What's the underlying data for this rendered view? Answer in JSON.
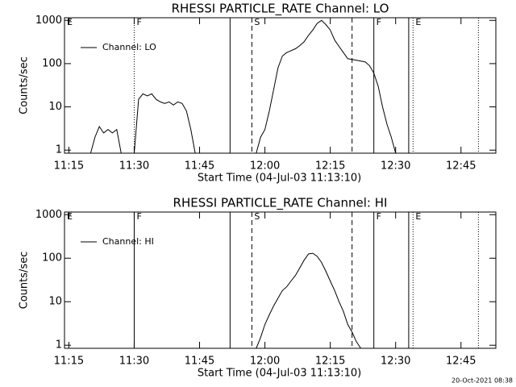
{
  "chart_data": [
    {
      "type": "line",
      "title": "RHESSI PARTICLE_RATE Channel: LO",
      "xlabel": "Start Time (04-Jul-03 11:13:10)",
      "ylabel": "Counts/sec",
      "x": [
        "11:20",
        "11:21",
        "11:22",
        "11:23",
        "11:24",
        "11:25",
        "11:26",
        "11:27",
        "11:28",
        "11:30",
        "11:31",
        "11:32",
        "11:33",
        "11:34",
        "11:35",
        "11:36",
        "11:37",
        "11:38",
        "11:39",
        "11:40",
        "11:41",
        "11:42",
        "11:43",
        "11:44",
        "11:45",
        "11:58",
        "11:59",
        "12:00",
        "12:01",
        "12:02",
        "12:03",
        "12:04",
        "12:05",
        "12:06",
        "12:07",
        "12:08",
        "12:09",
        "12:10",
        "12:11",
        "12:12",
        "12:13",
        "12:14",
        "12:15",
        "12:16",
        "12:17",
        "12:18",
        "12:19",
        "12:20",
        "12:21",
        "12:22",
        "12:23",
        "12:24",
        "12:25",
        "12:26",
        "12:27",
        "12:28",
        "12:29",
        "12:30"
      ],
      "series": [
        {
          "name": "Channel: LO",
          "color": "#000000",
          "values": [
            0.85,
            2,
            3.5,
            2.5,
            3,
            2.5,
            3,
            0.85,
            null,
            0.85,
            15,
            20,
            18,
            20,
            15,
            13,
            12,
            13,
            11,
            13,
            12,
            8,
            3,
            0.85,
            null,
            0.85,
            2,
            3,
            8,
            25,
            80,
            150,
            180,
            200,
            220,
            260,
            320,
            450,
            600,
            850,
            1000,
            800,
            600,
            350,
            250,
            180,
            130,
            125,
            120,
            115,
            110,
            90,
            60,
            30,
            10,
            4,
            2,
            0.85
          ]
        }
      ],
      "xlim": [
        "11:14",
        "12:53"
      ],
      "xticks": [
        "11:15",
        "11:30",
        "11:45",
        "12:00",
        "12:15",
        "12:30",
        "12:45"
      ],
      "ylim": [
        0.85,
        1150
      ],
      "yticks": [
        1,
        10,
        100,
        1000
      ],
      "log_y": true,
      "legend": "upper left",
      "markers": [
        {
          "x": "11:14",
          "style": "none",
          "label": "E"
        },
        {
          "x": "11:30",
          "style": "dotted",
          "label": "F"
        },
        {
          "x": "11:52",
          "style": "solid"
        },
        {
          "x": "11:57",
          "style": "dashed",
          "label": "S"
        },
        {
          "x": "12:20",
          "style": "dashed"
        },
        {
          "x": "12:25",
          "style": "solid",
          "label": "F"
        },
        {
          "x": "12:33",
          "style": "solid"
        },
        {
          "x": "12:34",
          "style": "dotted",
          "label": "E"
        },
        {
          "x": "12:49",
          "style": "dotted"
        }
      ]
    },
    {
      "type": "line",
      "title": "RHESSI PARTICLE_RATE Channel: HI",
      "xlabel": "Start Time (04-Jul-03 11:13:10)",
      "ylabel": "Counts/sec",
      "x": [
        "11:58",
        "11:59",
        "12:00",
        "12:01",
        "12:02",
        "12:03",
        "12:04",
        "12:05",
        "12:06",
        "12:07",
        "12:08",
        "12:09",
        "12:10",
        "12:11",
        "12:12",
        "12:13",
        "12:14",
        "12:15",
        "12:16",
        "12:17",
        "12:18",
        "12:19",
        "12:20",
        "12:21",
        "12:22"
      ],
      "series": [
        {
          "name": "Channel: HI",
          "color": "#000000",
          "values": [
            0.85,
            1.5,
            3,
            5,
            8,
            12,
            18,
            22,
            30,
            40,
            60,
            90,
            125,
            130,
            110,
            80,
            50,
            30,
            18,
            10,
            6,
            3,
            2,
            1.2,
            0.85
          ]
        }
      ],
      "xlim": [
        "11:14",
        "12:53"
      ],
      "xticks": [
        "11:15",
        "11:30",
        "11:45",
        "12:00",
        "12:15",
        "12:30",
        "12:45"
      ],
      "ylim": [
        0.85,
        1150
      ],
      "yticks": [
        1,
        10,
        100,
        1000
      ],
      "log_y": true,
      "legend": "upper left",
      "markers": [
        {
          "x": "11:14",
          "style": "none",
          "label": "E"
        },
        {
          "x": "11:30",
          "style": "solid",
          "label": "F"
        },
        {
          "x": "11:52",
          "style": "solid"
        },
        {
          "x": "11:57",
          "style": "dashed",
          "label": "S"
        },
        {
          "x": "12:20",
          "style": "dashed"
        },
        {
          "x": "12:25",
          "style": "solid",
          "label": "F"
        },
        {
          "x": "12:33",
          "style": "solid"
        },
        {
          "x": "12:34",
          "style": "dotted",
          "label": "E"
        },
        {
          "x": "12:49",
          "style": "dotted"
        }
      ]
    }
  ],
  "timestamp": "20-Oct-2021 08:38"
}
